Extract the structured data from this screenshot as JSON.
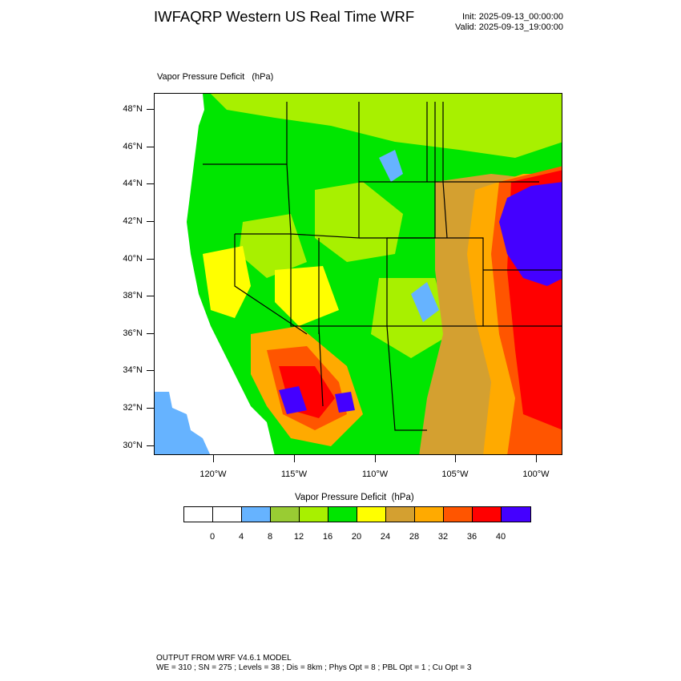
{
  "header": {
    "title": "IWFAQRP Western US Real Time WRF",
    "init": "Init: 2025-09-13_00:00:00",
    "valid": "Valid: 2025-09-13_19:00:00"
  },
  "map": {
    "field_label": "Vapor Pressure Deficit   (hPa)",
    "lat_labels": [
      "48°N",
      "46°N",
      "44°N",
      "42°N",
      "40°N",
      "38°N",
      "36°N",
      "34°N",
      "32°N",
      "30°N"
    ],
    "lon_labels": [
      "120°W",
      "115°W",
      "110°W",
      "105°W",
      "100°W"
    ]
  },
  "colorbar": {
    "title": "Vapor Pressure Deficit  (hPa)",
    "colors": [
      "#ffffff",
      "#ffffff",
      "#66b3ff",
      "#99cc33",
      "#a8f000",
      "#00e600",
      "#ffff00",
      "#d4a030",
      "#ffaa00",
      "#ff5500",
      "#ff0000",
      "#4400ff"
    ],
    "labels": [
      "0",
      "4",
      "8",
      "12",
      "16",
      "20",
      "24",
      "28",
      "32",
      "36",
      "40"
    ]
  },
  "footer": {
    "line1": "OUTPUT FROM WRF V4.6.1 MODEL",
    "line2": "WE = 310 ; SN = 275 ; Levels = 38 ; Dis = 8km ; Phys Opt = 8 ; PBL Opt = 1 ; Cu Opt = 3"
  }
}
